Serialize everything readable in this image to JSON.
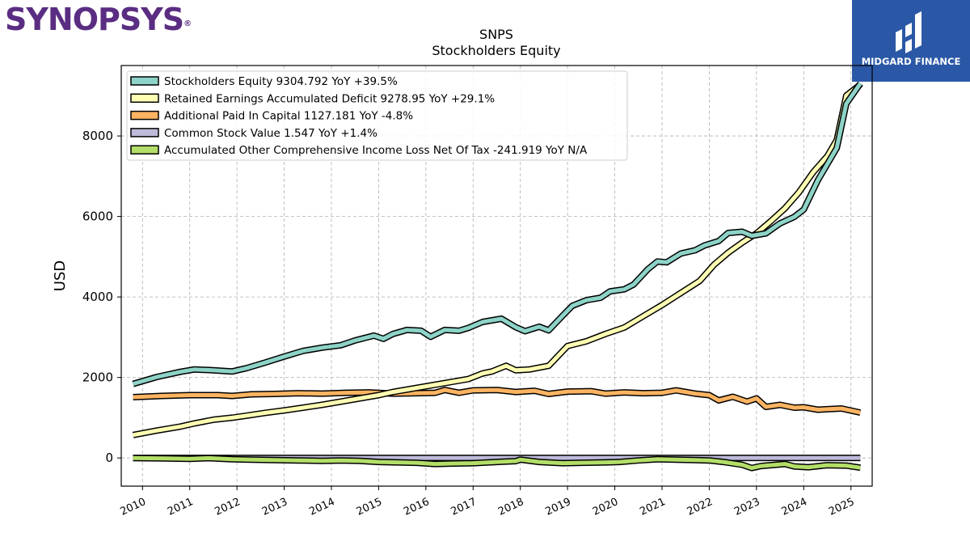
{
  "brand_left": {
    "text": "SYNOPSYS",
    "mark": "®"
  },
  "brand_right": {
    "name": "MIDGARD FINANCE",
    "icon": "midgard-logo-icon",
    "bg": "#2b58a6"
  },
  "chart_data": {
    "type": "line",
    "title": "SNPS",
    "subtitle": "Stockholders  Equity",
    "ylabel": "USD",
    "xlabel": "",
    "xlim": [
      2009.55,
      2025.45
    ],
    "ylim": [
      -700,
      9750
    ],
    "yticks": [
      0,
      2000,
      4000,
      6000,
      8000
    ],
    "xticks": [
      2010,
      2011,
      2012,
      2013,
      2014,
      2015,
      2016,
      2017,
      2018,
      2019,
      2020,
      2021,
      2022,
      2023,
      2024,
      2025
    ],
    "grid": true,
    "legend_position": "top-left",
    "series": [
      {
        "name": "Stockholders Equity  9304.792 YoY +39.5%",
        "color": "#8dd3c7",
        "points": [
          [
            2009.8,
            1840
          ],
          [
            2010.3,
            2010
          ],
          [
            2010.8,
            2140
          ],
          [
            2011.1,
            2200
          ],
          [
            2011.5,
            2180
          ],
          [
            2011.9,
            2150
          ],
          [
            2012.2,
            2230
          ],
          [
            2012.6,
            2370
          ],
          [
            2013.0,
            2520
          ],
          [
            2013.4,
            2660
          ],
          [
            2013.8,
            2740
          ],
          [
            2014.2,
            2800
          ],
          [
            2014.5,
            2920
          ],
          [
            2014.9,
            3040
          ],
          [
            2015.1,
            2960
          ],
          [
            2015.3,
            3080
          ],
          [
            2015.6,
            3180
          ],
          [
            2015.9,
            3160
          ],
          [
            2016.1,
            3010
          ],
          [
            2016.4,
            3180
          ],
          [
            2016.7,
            3160
          ],
          [
            2016.9,
            3230
          ],
          [
            2017.2,
            3380
          ],
          [
            2017.6,
            3460
          ],
          [
            2017.9,
            3250
          ],
          [
            2018.1,
            3150
          ],
          [
            2018.4,
            3260
          ],
          [
            2018.6,
            3170
          ],
          [
            2018.9,
            3540
          ],
          [
            2019.1,
            3780
          ],
          [
            2019.4,
            3920
          ],
          [
            2019.7,
            3980
          ],
          [
            2019.9,
            4140
          ],
          [
            2020.2,
            4190
          ],
          [
            2020.4,
            4310
          ],
          [
            2020.7,
            4690
          ],
          [
            2020.9,
            4880
          ],
          [
            2021.1,
            4860
          ],
          [
            2021.4,
            5080
          ],
          [
            2021.7,
            5160
          ],
          [
            2021.9,
            5280
          ],
          [
            2022.2,
            5390
          ],
          [
            2022.4,
            5590
          ],
          [
            2022.7,
            5620
          ],
          [
            2022.9,
            5520
          ],
          [
            2023.2,
            5580
          ],
          [
            2023.5,
            5830
          ],
          [
            2023.8,
            5990
          ],
          [
            2024.0,
            6170
          ],
          [
            2024.3,
            6900
          ],
          [
            2024.7,
            7700
          ],
          [
            2024.9,
            8800
          ],
          [
            2025.2,
            9304.792
          ]
        ]
      },
      {
        "name": "Retained Earnings Accumulated Deficit  9278.95 YoY +29.1%",
        "color": "#ffffb3",
        "points": [
          [
            2009.8,
            570
          ],
          [
            2010.3,
            680
          ],
          [
            2010.8,
            780
          ],
          [
            2011.1,
            860
          ],
          [
            2011.5,
            950
          ],
          [
            2011.9,
            1000
          ],
          [
            2012.2,
            1050
          ],
          [
            2012.6,
            1120
          ],
          [
            2013.0,
            1180
          ],
          [
            2013.4,
            1250
          ],
          [
            2013.8,
            1320
          ],
          [
            2014.2,
            1400
          ],
          [
            2014.6,
            1480
          ],
          [
            2015.0,
            1560
          ],
          [
            2015.3,
            1640
          ],
          [
            2015.7,
            1720
          ],
          [
            2016.1,
            1800
          ],
          [
            2016.5,
            1880
          ],
          [
            2016.9,
            1960
          ],
          [
            2017.2,
            2100
          ],
          [
            2017.4,
            2150
          ],
          [
            2017.7,
            2290
          ],
          [
            2017.9,
            2180
          ],
          [
            2018.2,
            2200
          ],
          [
            2018.6,
            2290
          ],
          [
            2019.0,
            2780
          ],
          [
            2019.4,
            2900
          ],
          [
            2019.8,
            3080
          ],
          [
            2020.2,
            3240
          ],
          [
            2020.6,
            3520
          ],
          [
            2021.0,
            3800
          ],
          [
            2021.4,
            4100
          ],
          [
            2021.8,
            4400
          ],
          [
            2022.1,
            4800
          ],
          [
            2022.4,
            5100
          ],
          [
            2022.7,
            5350
          ],
          [
            2023.0,
            5580
          ],
          [
            2023.3,
            5880
          ],
          [
            2023.6,
            6200
          ],
          [
            2023.9,
            6600
          ],
          [
            2024.2,
            7100
          ],
          [
            2024.5,
            7500
          ],
          [
            2024.7,
            7900
          ],
          [
            2024.9,
            9000
          ],
          [
            2025.2,
            9278.95
          ]
        ]
      },
      {
        "name": "Additional Paid In Capital  1127.181 YoY -4.8%",
        "color": "#fdb462",
        "points": [
          [
            2009.8,
            1510
          ],
          [
            2010.4,
            1540
          ],
          [
            2011.0,
            1560
          ],
          [
            2011.6,
            1560
          ],
          [
            2011.9,
            1540
          ],
          [
            2012.3,
            1580
          ],
          [
            2012.8,
            1590
          ],
          [
            2013.3,
            1610
          ],
          [
            2013.8,
            1600
          ],
          [
            2014.3,
            1620
          ],
          [
            2014.8,
            1630
          ],
          [
            2015.3,
            1600
          ],
          [
            2015.8,
            1610
          ],
          [
            2016.2,
            1620
          ],
          [
            2016.4,
            1690
          ],
          [
            2016.7,
            1620
          ],
          [
            2017.0,
            1680
          ],
          [
            2017.5,
            1690
          ],
          [
            2017.9,
            1640
          ],
          [
            2018.3,
            1670
          ],
          [
            2018.6,
            1590
          ],
          [
            2019.0,
            1650
          ],
          [
            2019.5,
            1660
          ],
          [
            2019.8,
            1600
          ],
          [
            2020.2,
            1630
          ],
          [
            2020.6,
            1610
          ],
          [
            2021.0,
            1620
          ],
          [
            2021.3,
            1680
          ],
          [
            2021.7,
            1600
          ],
          [
            2022.0,
            1560
          ],
          [
            2022.2,
            1430
          ],
          [
            2022.5,
            1520
          ],
          [
            2022.8,
            1400
          ],
          [
            2023.0,
            1480
          ],
          [
            2023.2,
            1270
          ],
          [
            2023.5,
            1320
          ],
          [
            2023.8,
            1250
          ],
          [
            2024.0,
            1260
          ],
          [
            2024.3,
            1200
          ],
          [
            2024.8,
            1230
          ],
          [
            2025.2,
            1127.181
          ]
        ]
      },
      {
        "name": "Common Stock Value  1.547 YoY +1.4%",
        "color": "#bebada",
        "points": [
          [
            2009.8,
            1.5
          ],
          [
            2025.2,
            1.547
          ]
        ]
      },
      {
        "name": "Accumulated Other Comprehensive Income Loss Net Of Tax  -241.919 YoY N/A",
        "color": "#b3de69",
        "points": [
          [
            2009.8,
            0
          ],
          [
            2010.5,
            -10
          ],
          [
            2011.0,
            -20
          ],
          [
            2011.4,
            -5
          ],
          [
            2011.9,
            -30
          ],
          [
            2012.3,
            -40
          ],
          [
            2012.8,
            -50
          ],
          [
            2013.3,
            -60
          ],
          [
            2013.8,
            -70
          ],
          [
            2014.2,
            -60
          ],
          [
            2014.6,
            -70
          ],
          [
            2015.0,
            -100
          ],
          [
            2015.4,
            -110
          ],
          [
            2015.8,
            -120
          ],
          [
            2016.2,
            -150
          ],
          [
            2016.5,
            -140
          ],
          [
            2017.0,
            -130
          ],
          [
            2017.5,
            -100
          ],
          [
            2017.9,
            -80
          ],
          [
            2018.0,
            -40
          ],
          [
            2018.4,
            -100
          ],
          [
            2018.9,
            -130
          ],
          [
            2019.3,
            -120
          ],
          [
            2019.8,
            -110
          ],
          [
            2020.1,
            -100
          ],
          [
            2020.5,
            -60
          ],
          [
            2020.9,
            -30
          ],
          [
            2021.3,
            -40
          ],
          [
            2021.7,
            -50
          ],
          [
            2022.0,
            -60
          ],
          [
            2022.3,
            -100
          ],
          [
            2022.7,
            -170
          ],
          [
            2022.9,
            -250
          ],
          [
            2023.1,
            -200
          ],
          [
            2023.6,
            -150
          ],
          [
            2023.8,
            -210
          ],
          [
            2024.1,
            -230
          ],
          [
            2024.5,
            -180
          ],
          [
            2024.9,
            -190
          ],
          [
            2025.2,
            -241.919
          ]
        ]
      }
    ]
  }
}
